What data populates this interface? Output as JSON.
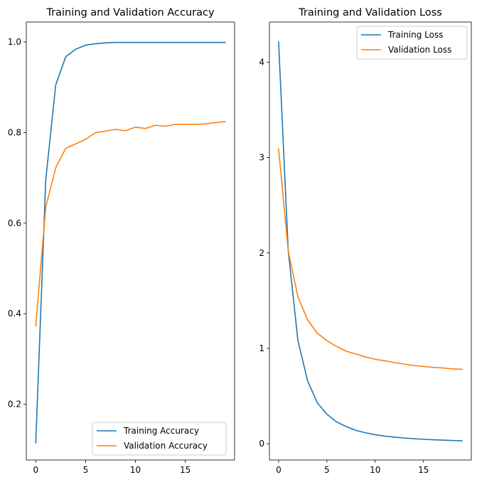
{
  "chart_data": [
    {
      "type": "line",
      "title": "Training and Validation Accuracy",
      "xlabel": "",
      "ylabel": "",
      "xlim": [
        -0.95,
        19.95
      ],
      "ylim": [
        0.077,
        1.044
      ],
      "xticks": [
        0,
        5,
        10,
        15
      ],
      "xtick_labels": [
        "0",
        "5",
        "10",
        "15"
      ],
      "yticks": [
        0.2,
        0.4,
        0.6,
        0.8,
        1.0
      ],
      "ytick_labels": [
        "0.2",
        "0.4",
        "0.6",
        "0.8",
        "1.0"
      ],
      "grid": false,
      "legend_position": "lower-right",
      "x": [
        0,
        1,
        2,
        3,
        4,
        5,
        6,
        7,
        8,
        9,
        10,
        11,
        12,
        13,
        14,
        15,
        16,
        17,
        18,
        19
      ],
      "series": [
        {
          "name": "Training Accuracy",
          "color": "#1f77b4",
          "values": [
            0.115,
            0.695,
            0.905,
            0.967,
            0.984,
            0.993,
            0.996,
            0.998,
            0.999,
            0.999,
            0.999,
            0.999,
            0.999,
            0.999,
            0.999,
            0.999,
            0.999,
            0.999,
            0.999,
            0.999
          ]
        },
        {
          "name": "Validation Accuracy",
          "color": "#ff7f0e",
          "values": [
            0.373,
            0.635,
            0.722,
            0.765,
            0.775,
            0.785,
            0.8,
            0.803,
            0.807,
            0.804,
            0.812,
            0.809,
            0.816,
            0.814,
            0.818,
            0.818,
            0.818,
            0.819,
            0.822,
            0.824
          ]
        }
      ]
    },
    {
      "type": "line",
      "title": "Training and Validation Loss",
      "xlabel": "",
      "ylabel": "",
      "xlim": [
        -0.95,
        19.95
      ],
      "ylim": [
        -0.17,
        4.42
      ],
      "xticks": [
        0,
        5,
        10,
        15
      ],
      "xtick_labels": [
        "0",
        "5",
        "10",
        "15"
      ],
      "yticks": [
        0,
        1,
        2,
        3,
        4
      ],
      "ytick_labels": [
        "0",
        "1",
        "2",
        "3",
        "4"
      ],
      "grid": false,
      "legend_position": "upper-right",
      "x": [
        0,
        1,
        2,
        3,
        4,
        5,
        6,
        7,
        8,
        9,
        10,
        11,
        12,
        13,
        14,
        15,
        16,
        17,
        18,
        19
      ],
      "series": [
        {
          "name": "Training Loss",
          "color": "#1f77b4",
          "values": [
            4.21,
            2.02,
            1.08,
            0.66,
            0.43,
            0.31,
            0.23,
            0.18,
            0.14,
            0.115,
            0.095,
            0.08,
            0.07,
            0.06,
            0.053,
            0.047,
            0.042,
            0.038,
            0.034,
            0.031
          ]
        },
        {
          "name": "Validation Loss",
          "color": "#ff7f0e",
          "values": [
            3.09,
            2.02,
            1.54,
            1.3,
            1.16,
            1.08,
            1.02,
            0.97,
            0.94,
            0.91,
            0.885,
            0.87,
            0.85,
            0.835,
            0.82,
            0.81,
            0.8,
            0.795,
            0.785,
            0.78
          ]
        }
      ]
    }
  ]
}
